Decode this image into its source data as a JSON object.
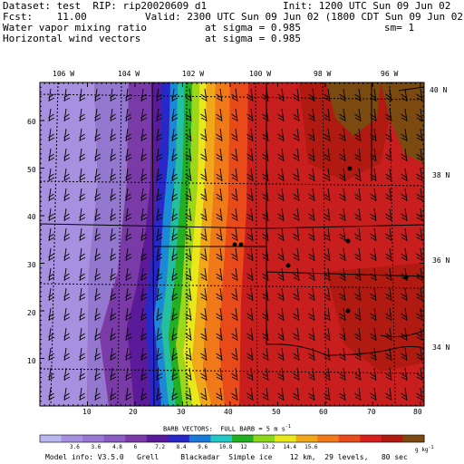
{
  "header": {
    "dataset": "Dataset: test  RIP: rip20020609 d1",
    "init": "Init: 1200 UTC Sun 09 Jun 02",
    "fcst": "Fcst:    11.00",
    "valid": "Valid: 2300 UTC Sun 09 Jun 02 (1800 CDT Sun 09 Jun 02)",
    "field1": "Water vapor mixing ratio",
    "sigma1": "at sigma = 0.985",
    "sm": "sm= 1",
    "field2": "Horizontal wind vectors",
    "sigma2": "at sigma = 0.985"
  },
  "map": {
    "lon_labels": [
      "106 W",
      "104 W",
      "102 W",
      "100 W",
      "98 W",
      "96 W"
    ],
    "lat_labels": [
      "40 N",
      "38 N",
      "36 N",
      "34 N"
    ],
    "grid_x_labels": [
      "10",
      "20",
      "30",
      "40",
      "50",
      "60",
      "70",
      "80"
    ],
    "grid_y_labels": [
      "10",
      "20",
      "30",
      "40",
      "50",
      "60"
    ]
  },
  "barbs_caption": "BARB VECTORS:  FULL BARB = 5 m s",
  "barbs_exp": "-1",
  "colorbar": {
    "labels": [
      "3.6",
      "3.6",
      "4.8",
      "6",
      "7.2",
      "8.4",
      "9.6",
      "10.8",
      "12",
      "13.2",
      "14.4",
      "15.6"
    ],
    "unit": "g kg",
    "unit_exp": "-1",
    "colors": [
      "#b8b8f0",
      "#a890e0",
      "#9878d4",
      "#8a5cc4",
      "#7a3aa8",
      "#5a1a9a",
      "#2828c8",
      "#1a7ad8",
      "#22c8c8",
      "#22b022",
      "#8cd81a",
      "#e8e81a",
      "#f0a81a",
      "#f07a1a",
      "#e84a1a",
      "#d81e1e",
      "#b01a10",
      "#7a4a10"
    ]
  },
  "model_info": "Model info: V3.5.0   Grell     Blackadar  Simple ice    12 km,  29 levels,   80 sec"
}
